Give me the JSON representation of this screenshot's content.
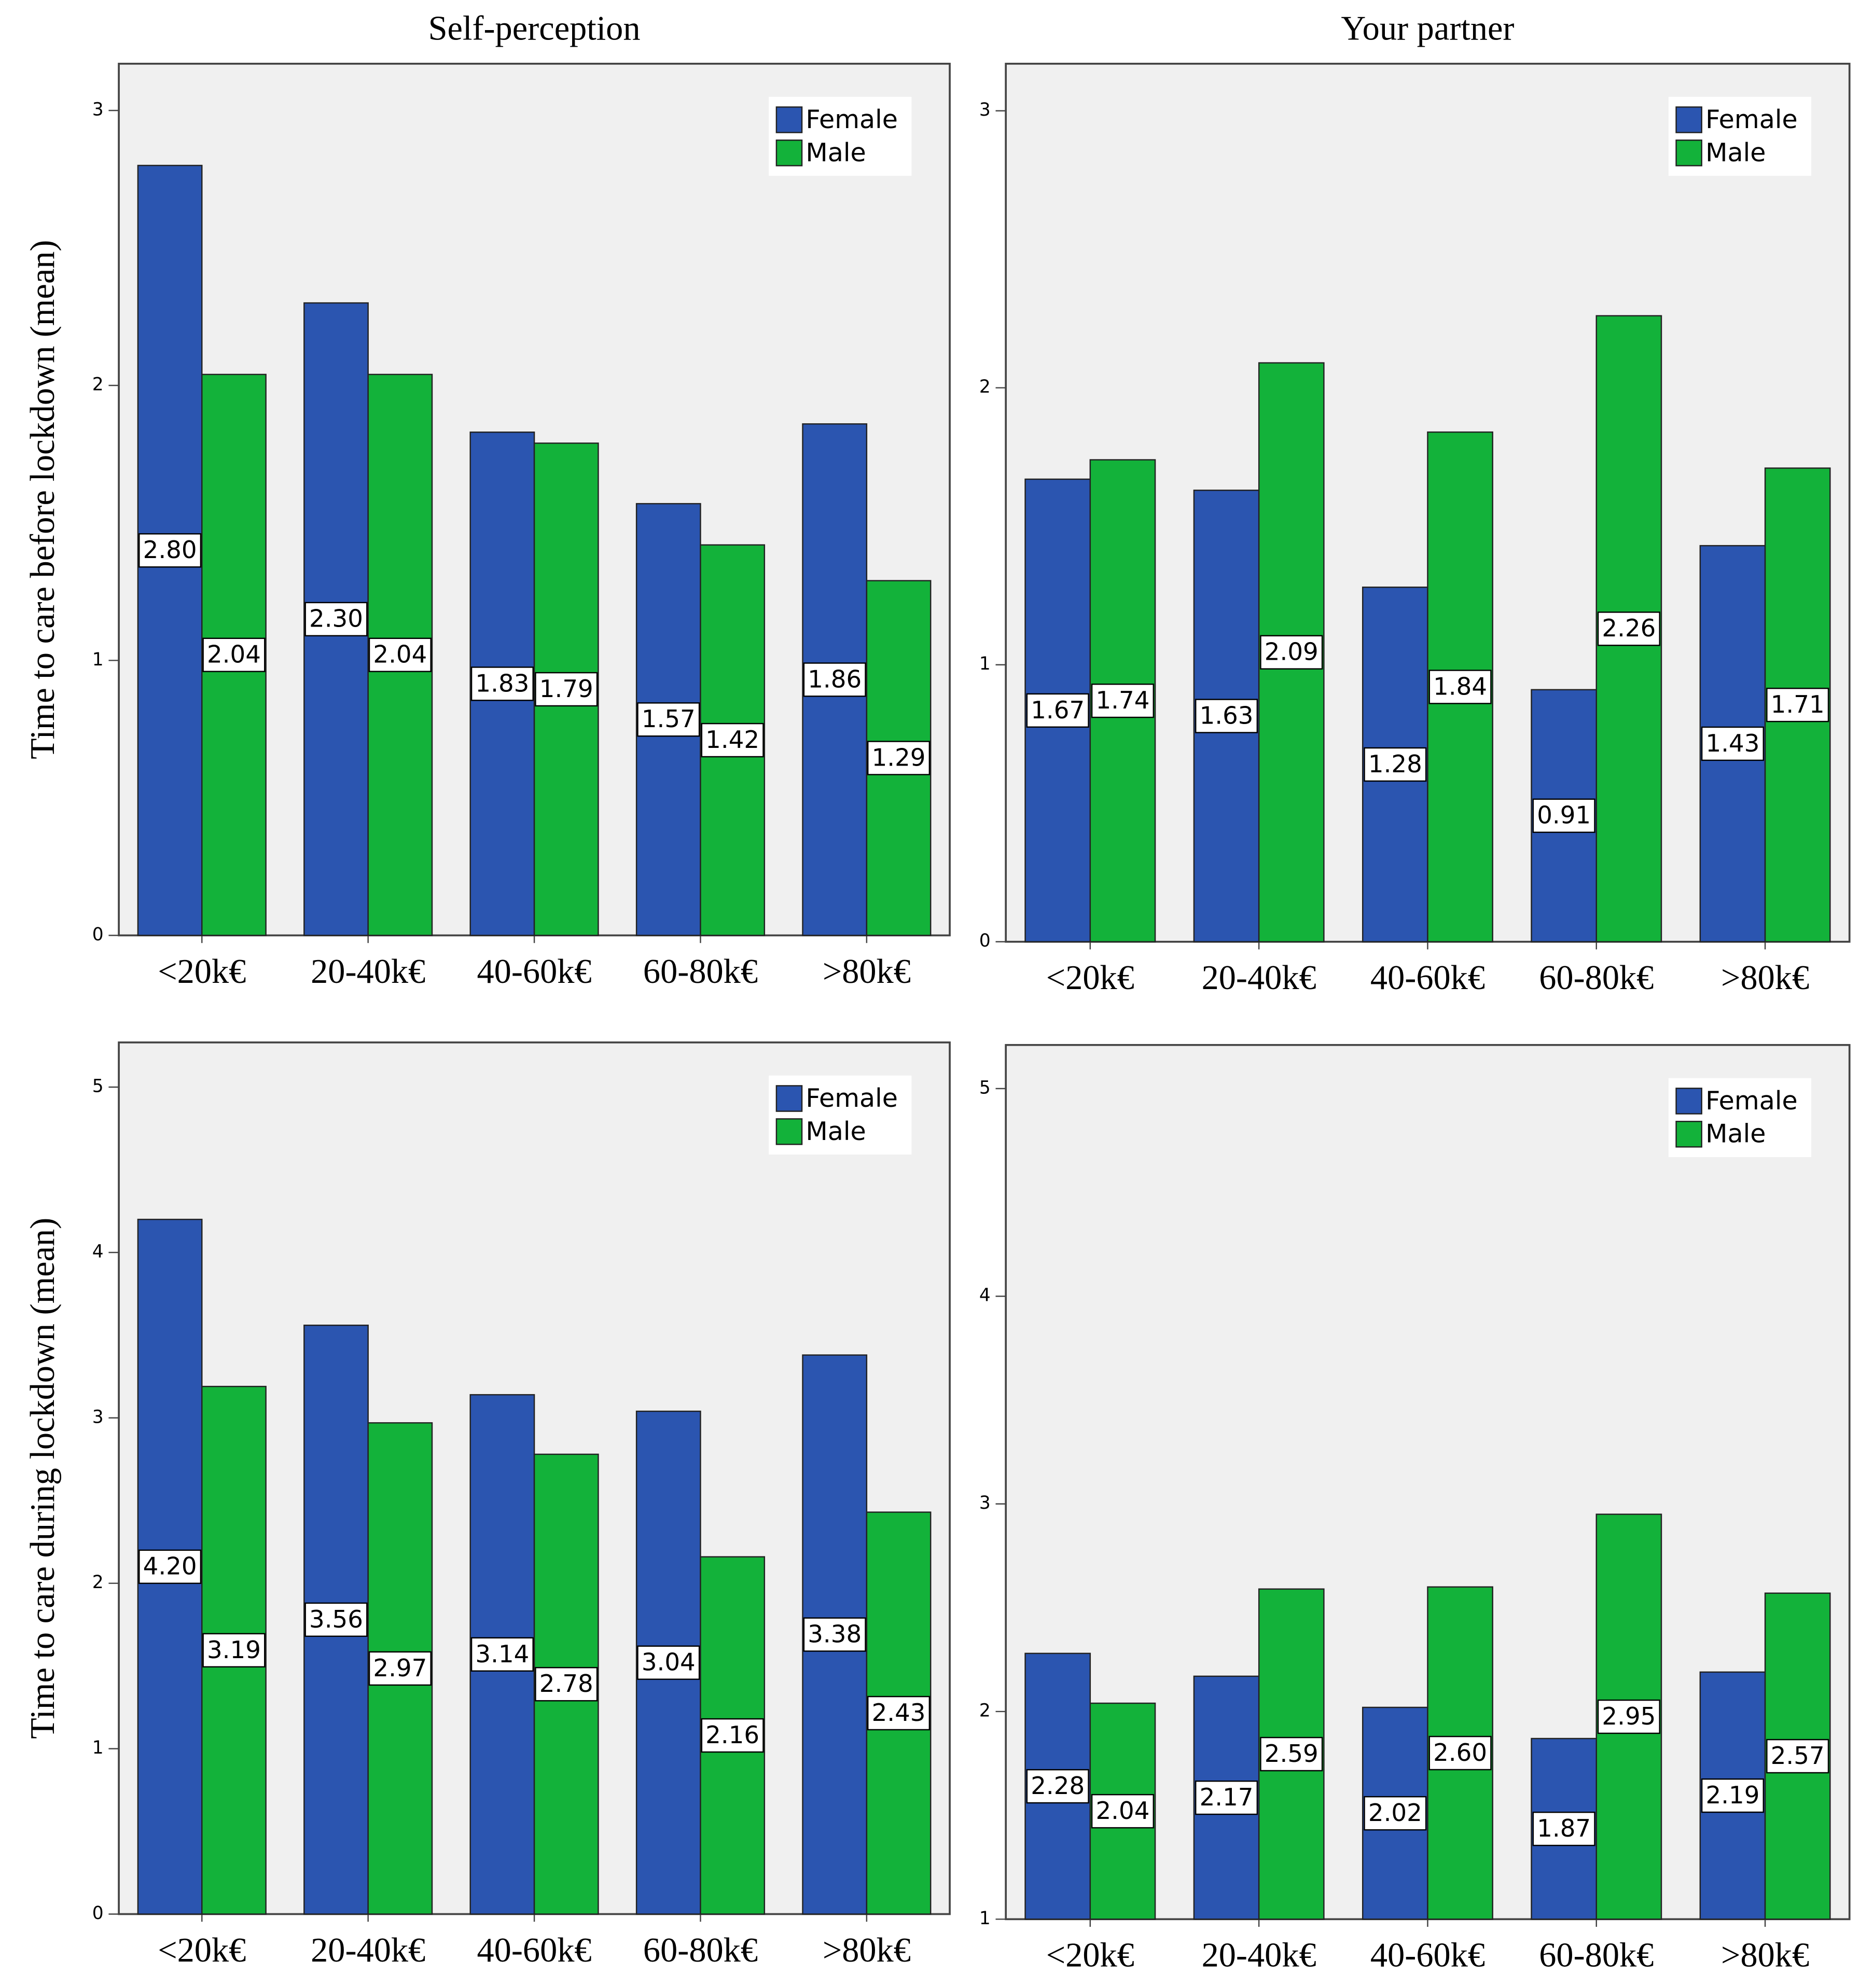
{
  "chart_data": [
    {
      "type": "bar",
      "title": "Self-perception",
      "ylabel": "Time to care before lockdown (mean)",
      "categories": [
        "<20k€",
        "20-40k€",
        "40-60k€",
        "60-80k€",
        ">80k€"
      ],
      "series": [
        {
          "name": "Female",
          "color": "#2b55b0",
          "values": [
            2.8,
            2.3,
            1.83,
            1.57,
            1.86
          ],
          "value_labels": [
            "2.80",
            "2.30",
            "1.83",
            "1.57",
            "1.86"
          ]
        },
        {
          "name": "Male",
          "color": "#13b23a",
          "values": [
            2.04,
            2.04,
            1.79,
            1.42,
            1.29
          ],
          "value_labels": [
            "2.04",
            "2.04",
            "1.79",
            "1.42",
            "1.29"
          ]
        }
      ],
      "ylim": [
        0,
        3.17
      ],
      "yticks": [
        0,
        1,
        2,
        3
      ],
      "legend": "upper right"
    },
    {
      "type": "bar",
      "title": "Your partner",
      "categories": [
        "<20k€",
        "20-40k€",
        "40-60k€",
        "60-80k€",
        ">80k€"
      ],
      "series": [
        {
          "name": "Female",
          "color": "#2b55b0",
          "values": [
            1.67,
            1.63,
            1.28,
            0.91,
            1.43
          ],
          "value_labels": [
            "1.67",
            "1.63",
            "1.28",
            "0.91",
            "1.43"
          ]
        },
        {
          "name": "Male",
          "color": "#13b23a",
          "values": [
            1.74,
            2.09,
            1.84,
            2.26,
            1.71
          ],
          "value_labels": [
            "1.74",
            "2.09",
            "1.84",
            "2.26",
            "1.71"
          ]
        }
      ],
      "ylim": [
        0,
        3.17
      ],
      "yticks": [
        0,
        1,
        2,
        3
      ],
      "legend": "upper right"
    },
    {
      "type": "bar",
      "ylabel": "Time to care during lockdown (mean)",
      "categories": [
        "<20k€",
        "20-40k€",
        "40-60k€",
        "60-80k€",
        ">80k€"
      ],
      "series": [
        {
          "name": "Female",
          "color": "#2b55b0",
          "values": [
            4.2,
            3.56,
            3.14,
            3.04,
            3.38
          ],
          "value_labels": [
            "4.20",
            "3.56",
            "3.14",
            "3.04",
            "3.38"
          ]
        },
        {
          "name": "Male",
          "color": "#13b23a",
          "values": [
            3.19,
            2.97,
            2.78,
            2.16,
            2.43
          ],
          "value_labels": [
            "3.19",
            "2.97",
            "2.78",
            "2.16",
            "2.43"
          ]
        }
      ],
      "ylim": [
        0,
        5.27
      ],
      "yticks": [
        0,
        1,
        2,
        3,
        4,
        5
      ],
      "legend": "upper right"
    },
    {
      "type": "bar",
      "categories": [
        "<20k€",
        "20-40k€",
        "40-60k€",
        "60-80k€",
        ">80k€"
      ],
      "series": [
        {
          "name": "Female",
          "color": "#2b55b0",
          "values": [
            2.28,
            2.17,
            2.02,
            1.87,
            2.19
          ],
          "value_labels": [
            "2.28",
            "2.17",
            "2.02",
            "1.87",
            "2.19"
          ]
        },
        {
          "name": "Male",
          "color": "#13b23a",
          "values": [
            2.04,
            2.59,
            2.6,
            2.95,
            2.57
          ],
          "value_labels": [
            "2.04",
            "2.59",
            "2.60",
            "2.95",
            "2.57"
          ]
        }
      ],
      "ylim": [
        1,
        5.21
      ],
      "yticks": [
        1,
        2,
        3,
        4,
        5
      ],
      "legend": "upper right"
    }
  ]
}
